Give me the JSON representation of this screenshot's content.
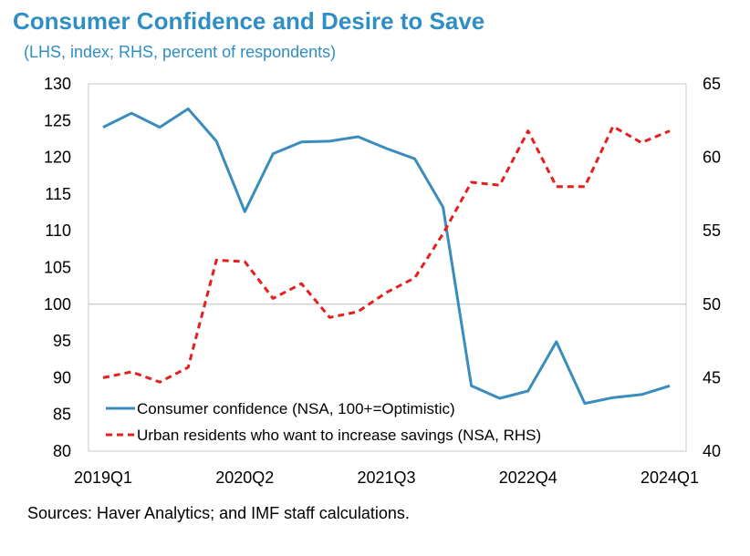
{
  "title": "Consumer Confidence and Desire to Save",
  "subtitle": "(LHS, index; RHS, percent of respondents)",
  "source": "Sources: Haver Analytics; and IMF staff calculations.",
  "chart_data": {
    "type": "line",
    "x_tick_labels": [
      "2019Q1",
      "2020Q2",
      "2021Q3",
      "2022Q4",
      "2024Q1"
    ],
    "x_tick_indices": [
      0,
      5,
      10,
      15,
      20
    ],
    "ylim_left": [
      80,
      130
    ],
    "yticks_left": [
      80,
      85,
      90,
      95,
      100,
      105,
      110,
      115,
      120,
      125,
      130
    ],
    "ylim_right": [
      40,
      65
    ],
    "yticks_right": [
      40,
      45,
      50,
      55,
      60,
      65
    ],
    "reference_line": {
      "axis": "left",
      "value": 100
    },
    "legend_position": "bottom-left",
    "series": [
      {
        "name": "Consumer confidence (NSA, 100+=Optimistic)",
        "axis": "left",
        "color": "#3a8cbc",
        "style": "solid",
        "x": [
          0,
          1,
          2,
          3,
          4,
          5,
          6,
          7,
          8,
          9,
          10,
          11,
          12,
          13,
          14,
          15,
          16,
          17,
          18,
          19,
          20
        ],
        "values": [
          124.1,
          126.0,
          124.1,
          126.6,
          122.2,
          112.6,
          120.5,
          122.1,
          122.2,
          122.8,
          121.2,
          119.8,
          113.2,
          88.9,
          87.2,
          88.2,
          94.9,
          86.5,
          87.3,
          87.7,
          88.9
        ]
      },
      {
        "name": "Urban residents who want to increase savings (NSA, RHS)",
        "axis": "right",
        "color": "#e41f1f",
        "style": "dashed",
        "x": [
          0,
          1,
          2,
          3,
          4,
          5,
          6,
          7,
          8,
          9,
          10,
          11,
          12,
          13,
          14,
          15,
          16,
          17,
          18,
          19,
          20
        ],
        "values": [
          45.0,
          45.4,
          44.7,
          45.7,
          53.0,
          52.9,
          50.4,
          51.4,
          49.1,
          49.5,
          50.8,
          51.8,
          54.8,
          58.3,
          58.1,
          61.8,
          58.0,
          58.0,
          62.1,
          61.0,
          61.8
        ]
      }
    ]
  }
}
